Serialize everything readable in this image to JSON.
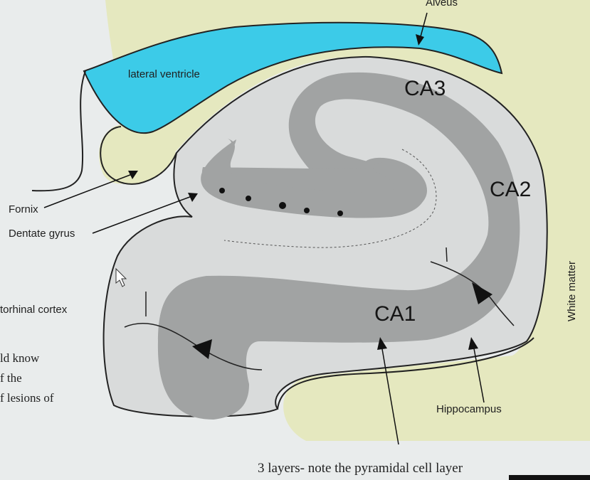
{
  "labels": {
    "alveus": "Alveus",
    "lateral_ventricle": "lateral ventricle",
    "ca3": "CA3",
    "ca2": "CA2",
    "ca1": "CA1",
    "fornix": "Fornix",
    "dentate_gyrus": "Dentate gyrus",
    "entorhinal_cortex": "torhinal cortex",
    "white_matter": "White matter",
    "hippocampus": "Hippocampus",
    "caption": "3 layers- note the pyramidal cell layer"
  },
  "cut_off_text": [
    "ld know",
    "f the",
    "f lesions of"
  ],
  "colors": {
    "background": "#e9ecec",
    "white_matter_tan": "#e5e8bf",
    "ventricle_blue": "#3ccbe8",
    "hippocampus_light": "#d9dbdb",
    "cell_layer_gray": "#a1a3a3",
    "outline": "#222222"
  }
}
